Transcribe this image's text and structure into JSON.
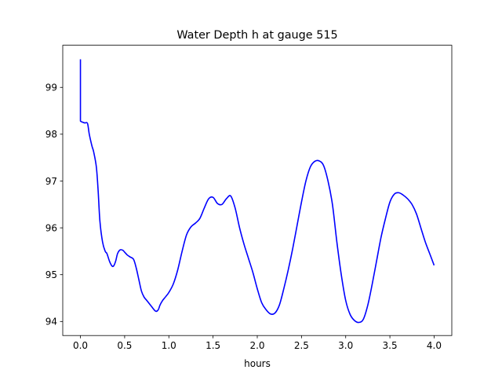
{
  "chart_data": {
    "type": "line",
    "title": "Water Depth h at gauge 515",
    "xlabel": "hours",
    "ylabel": "",
    "xlim": [
      -0.2,
      4.2
    ],
    "ylim": [
      93.7,
      99.9
    ],
    "xticks": [
      "0.0",
      "0.5",
      "1.0",
      "1.5",
      "2.0",
      "2.5",
      "3.0",
      "3.5",
      "4.0"
    ],
    "yticks": [
      "94",
      "95",
      "96",
      "97",
      "98",
      "99"
    ],
    "grid": false,
    "line_color": "#0000ff",
    "series": [
      {
        "name": "",
        "x": [
          0.0,
          0.0,
          0.02,
          0.05,
          0.08,
          0.1,
          0.13,
          0.15,
          0.18,
          0.2,
          0.22,
          0.25,
          0.28,
          0.3,
          0.33,
          0.36,
          0.38,
          0.4,
          0.42,
          0.45,
          0.48,
          0.5,
          0.53,
          0.56,
          0.6,
          0.63,
          0.66,
          0.69,
          0.72,
          0.75,
          0.8,
          0.85,
          0.88,
          0.9,
          0.93,
          0.96,
          1.0,
          1.05,
          1.1,
          1.15,
          1.2,
          1.25,
          1.3,
          1.35,
          1.4,
          1.45,
          1.5,
          1.55,
          1.6,
          1.65,
          1.7,
          1.75,
          1.8,
          1.85,
          1.9,
          1.95,
          2.0,
          2.05,
          2.1,
          2.15,
          2.2,
          2.25,
          2.3,
          2.35,
          2.4,
          2.45,
          2.5,
          2.55,
          2.6,
          2.65,
          2.7,
          2.75,
          2.8,
          2.85,
          2.9,
          2.95,
          3.0,
          3.05,
          3.1,
          3.15,
          3.2,
          3.25,
          3.3,
          3.35,
          3.4,
          3.45,
          3.5,
          3.55,
          3.6,
          3.65,
          3.7,
          3.75,
          3.8,
          3.85,
          3.9,
          3.95,
          4.0
        ],
        "values": [
          99.6,
          98.28,
          98.26,
          98.24,
          98.23,
          98.0,
          97.75,
          97.62,
          97.3,
          96.8,
          96.15,
          95.7,
          95.5,
          95.45,
          95.28,
          95.18,
          95.2,
          95.3,
          95.45,
          95.53,
          95.52,
          95.48,
          95.42,
          95.38,
          95.33,
          95.15,
          94.9,
          94.65,
          94.52,
          94.45,
          94.33,
          94.22,
          94.25,
          94.35,
          94.45,
          94.52,
          94.62,
          94.8,
          95.1,
          95.5,
          95.85,
          96.02,
          96.1,
          96.2,
          96.42,
          96.62,
          96.65,
          96.52,
          96.5,
          96.62,
          96.68,
          96.42,
          96.0,
          95.65,
          95.35,
          95.05,
          94.7,
          94.4,
          94.25,
          94.16,
          94.18,
          94.35,
          94.7,
          95.1,
          95.55,
          96.05,
          96.55,
          97.0,
          97.3,
          97.42,
          97.43,
          97.33,
          97.0,
          96.5,
          95.7,
          95.0,
          94.45,
          94.15,
          94.02,
          93.98,
          94.05,
          94.35,
          94.8,
          95.3,
          95.8,
          96.2,
          96.55,
          96.72,
          96.75,
          96.7,
          96.62,
          96.5,
          96.3,
          96.0,
          95.7,
          95.45,
          95.2
        ]
      }
    ]
  }
}
